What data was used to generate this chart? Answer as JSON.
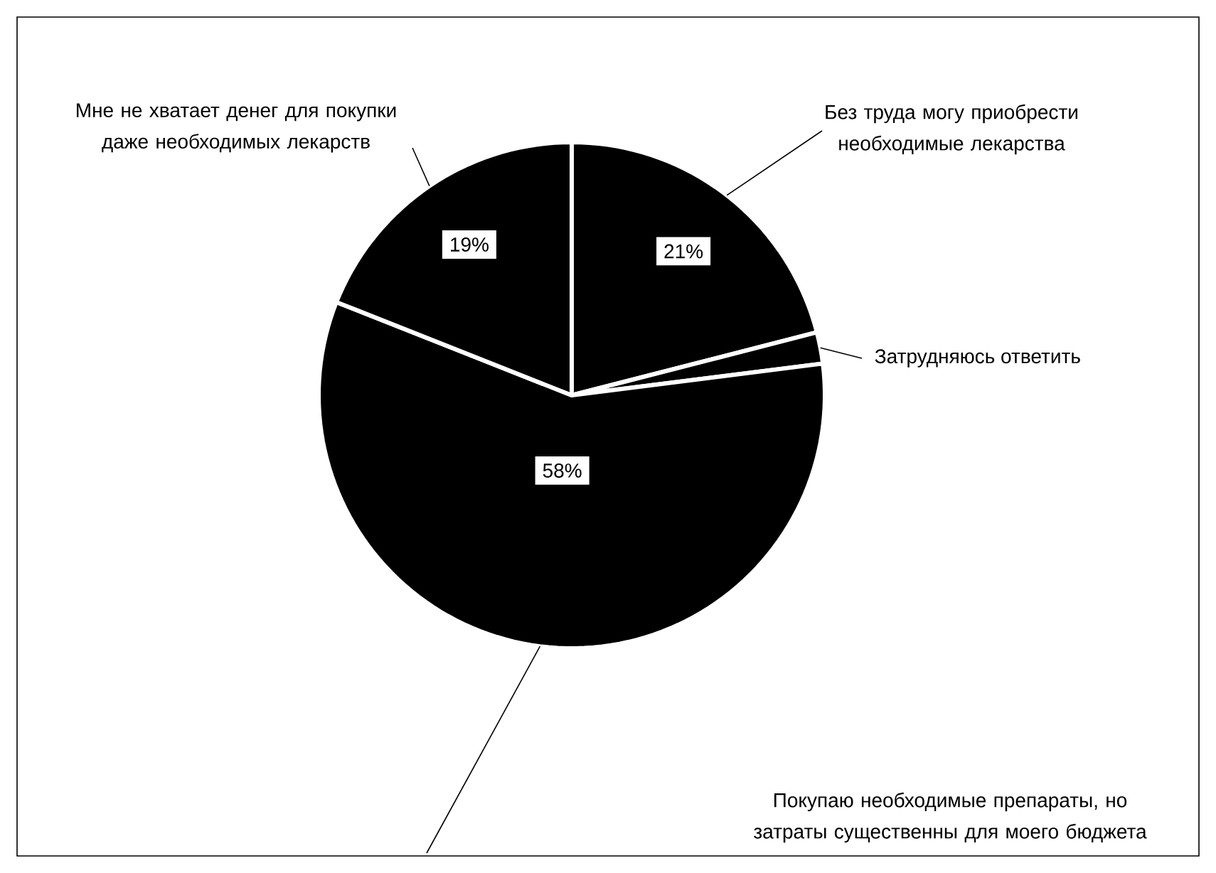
{
  "chart_data": {
    "type": "pie",
    "categories": [
      "Без труда могу приобрести необходимые лекарства",
      "Затрудняюсь ответить",
      "Покупаю необходимые препараты, но затраты существенны для моего бюджета",
      "Мне не хватает денег для покупки даже необходимых лекарств"
    ],
    "values": [
      21,
      2,
      58,
      19
    ],
    "colors": [
      "#000000",
      "#000000",
      "#000000",
      "#000000"
    ],
    "value_labels": [
      "21%",
      null,
      "58%",
      "19%"
    ]
  }
}
